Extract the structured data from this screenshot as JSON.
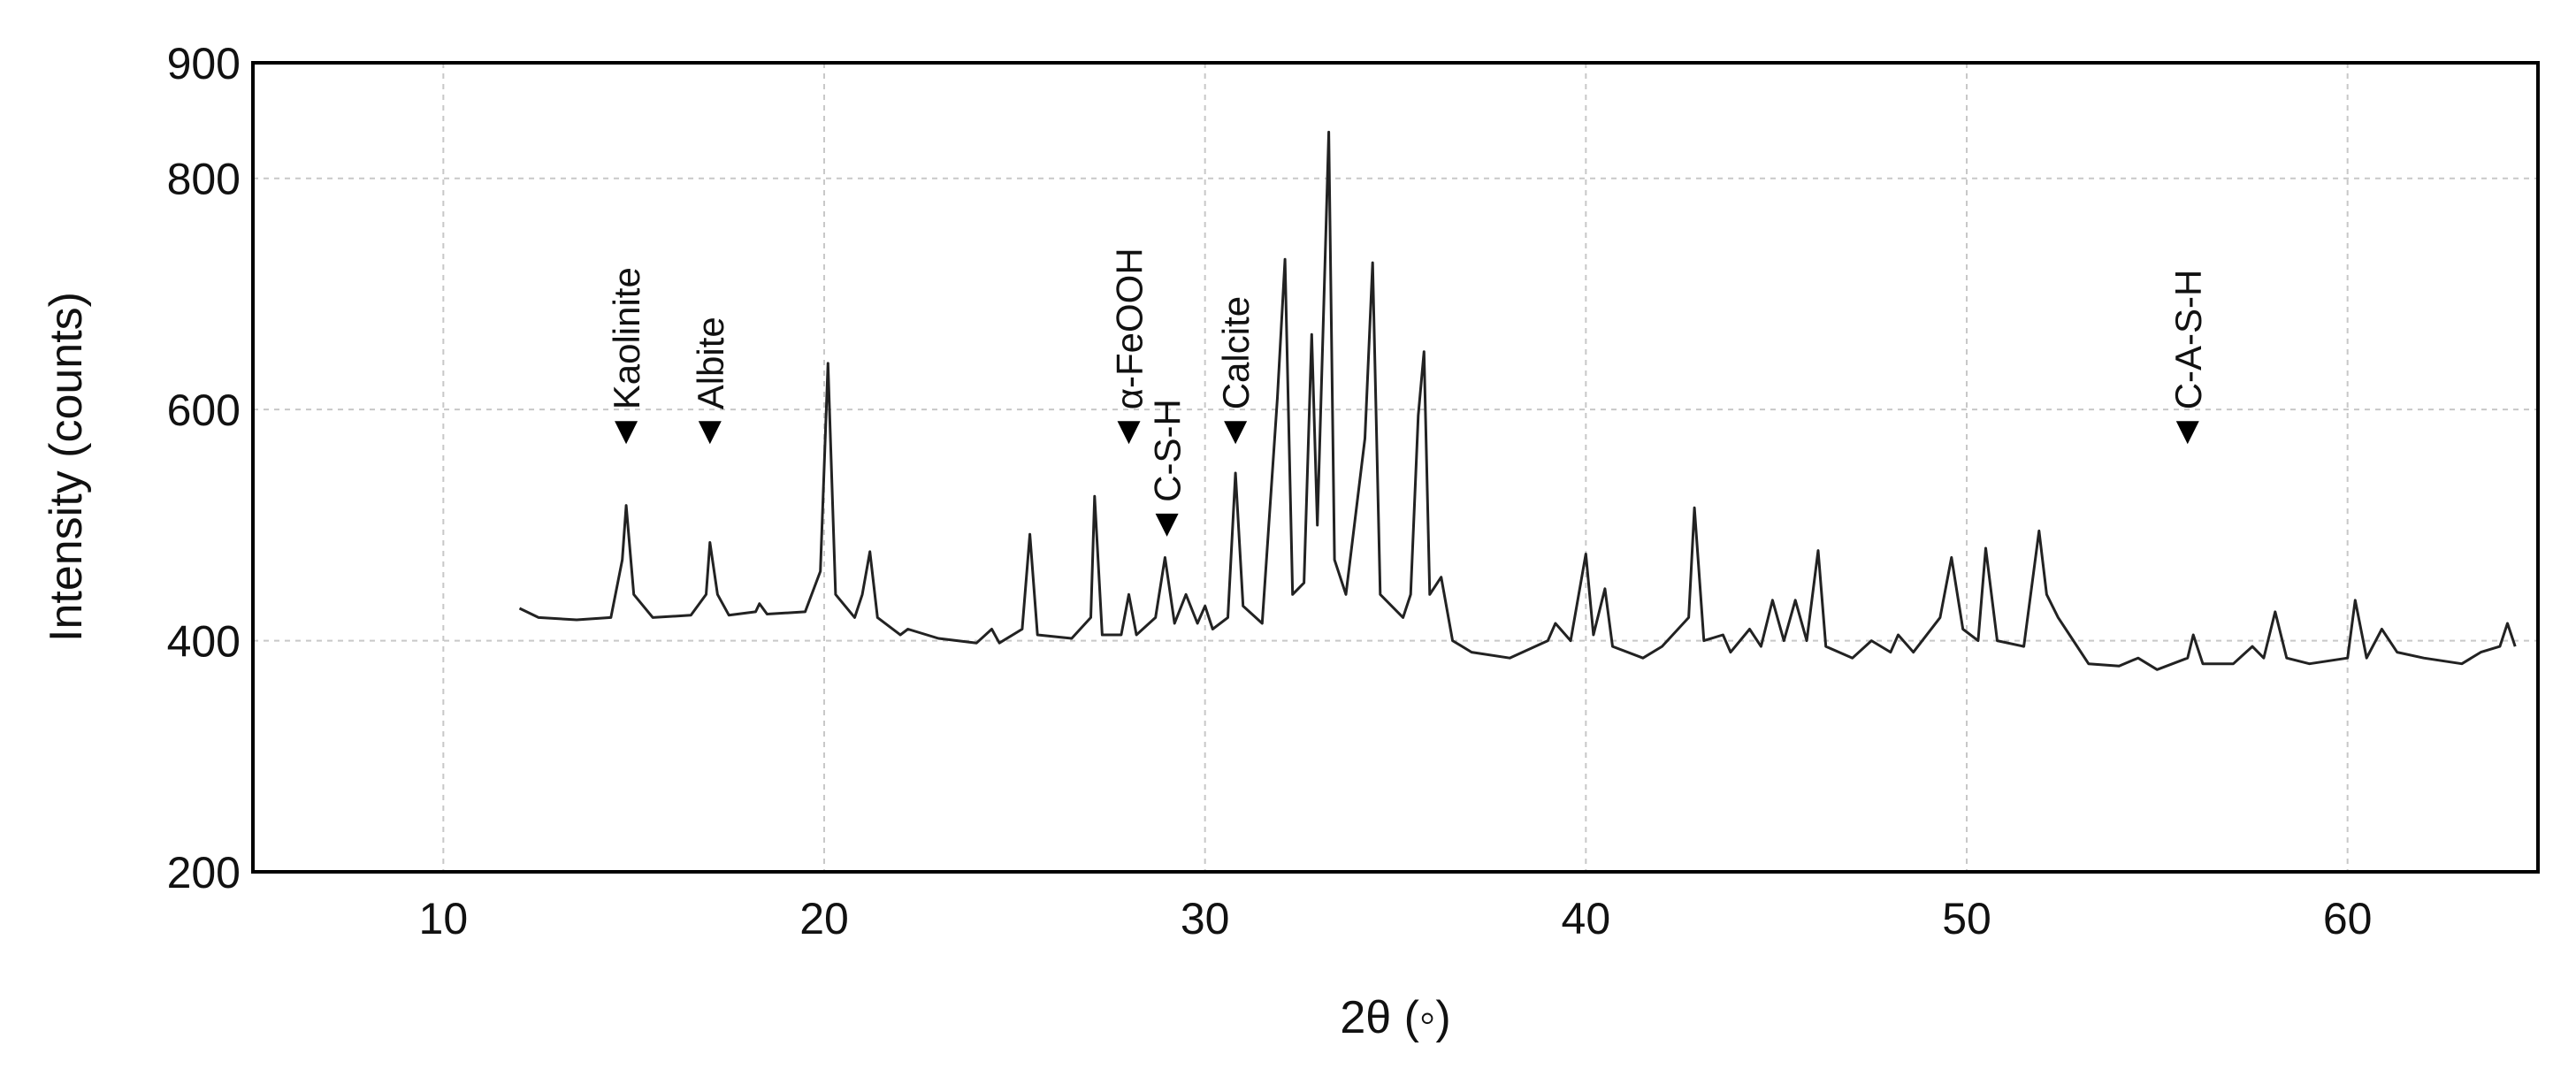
{
  "chart_data": {
    "type": "line",
    "x_label": "2θ (◦)",
    "y_label": "Intensity (counts)",
    "xlim": [
      5,
      65
    ],
    "ylim": [
      200,
      900
    ],
    "xticks": [
      10,
      20,
      30,
      40,
      50,
      60
    ],
    "yticks": [
      200,
      400,
      600,
      800,
      900
    ],
    "grid": true,
    "series": [
      {
        "color": "#222222",
        "x": [
          12.0,
          12.5,
          13.5,
          14.4,
          14.7,
          14.8,
          15.0,
          15.5,
          16.5,
          16.9,
          17.0,
          17.2,
          17.5,
          18.2,
          18.3,
          18.5,
          19.5,
          19.9,
          20.1,
          20.3,
          20.8,
          21.0,
          21.2,
          21.4,
          22.0,
          22.2,
          23.0,
          24.0,
          24.4,
          24.6,
          25.2,
          25.4,
          25.6,
          26.5,
          27.0,
          27.1,
          27.3,
          27.8,
          28.0,
          28.2,
          28.7,
          28.95,
          29.2,
          29.5,
          29.8,
          30.0,
          30.2,
          30.6,
          30.8,
          31.0,
          31.5,
          31.9,
          32.1,
          32.3,
          32.6,
          32.8,
          32.95,
          33.1,
          33.25,
          33.4,
          33.7,
          34.2,
          34.4,
          34.6,
          35.2,
          35.4,
          35.6,
          35.75,
          35.9,
          36.2,
          36.5,
          37.0,
          38.0,
          39.0,
          39.2,
          39.6,
          40.0,
          40.2,
          40.5,
          40.7,
          41.5,
          42.0,
          42.7,
          42.85,
          43.1,
          43.6,
          43.8,
          44.3,
          44.6,
          44.9,
          45.2,
          45.5,
          45.8,
          46.1,
          46.3,
          47.0,
          47.5,
          48.0,
          48.2,
          48.6,
          49.3,
          49.6,
          49.9,
          50.3,
          50.5,
          50.8,
          51.5,
          51.9,
          52.1,
          52.4,
          52.7,
          53.2,
          54.0,
          54.5,
          55.0,
          55.8,
          55.95,
          56.2,
          57.0,
          57.5,
          57.8,
          58.1,
          58.4,
          59.0,
          60.0,
          60.2,
          60.5,
          60.9,
          61.3,
          62.0,
          63.0,
          63.5,
          64.0,
          64.2,
          64.4
        ],
        "values": [
          428,
          420,
          418,
          420,
          470,
          517,
          440,
          420,
          422,
          440,
          485,
          440,
          422,
          425,
          432,
          423,
          425,
          460,
          640,
          440,
          420,
          440,
          477,
          420,
          405,
          410,
          402,
          398,
          410,
          398,
          410,
          492,
          405,
          402,
          420,
          525,
          405,
          405,
          440,
          405,
          420,
          472,
          415,
          440,
          415,
          430,
          410,
          420,
          545,
          430,
          415,
          610,
          730,
          440,
          450,
          665,
          500,
          670,
          840,
          470,
          440,
          575,
          727,
          440,
          420,
          440,
          595,
          650,
          440,
          455,
          400,
          390,
          385,
          400,
          415,
          400,
          475,
          405,
          445,
          395,
          385,
          395,
          420,
          515,
          400,
          405,
          390,
          410,
          395,
          435,
          400,
          435,
          400,
          478,
          395,
          385,
          400,
          390,
          405,
          390,
          420,
          472,
          410,
          400,
          480,
          400,
          395,
          495,
          440,
          420,
          405,
          380,
          378,
          385,
          375,
          385,
          405,
          380,
          380,
          395,
          385,
          425,
          385,
          380,
          385,
          435,
          385,
          410,
          390,
          385,
          380,
          390,
          395,
          415,
          395
        ]
      }
    ],
    "annotations": [
      {
        "text": "Kaolinite",
        "x": 14.8,
        "y": 580
      },
      {
        "text": "Albite",
        "x": 17.0,
        "y": 580
      },
      {
        "text": "α-FeOOH",
        "x": 28.0,
        "y": 580
      },
      {
        "text": "C-S-H",
        "x": 29.0,
        "y": 500
      },
      {
        "text": "Calcite",
        "x": 30.8,
        "y": 580
      },
      {
        "text": "C-A-S-H",
        "x": 55.8,
        "y": 580
      }
    ]
  }
}
